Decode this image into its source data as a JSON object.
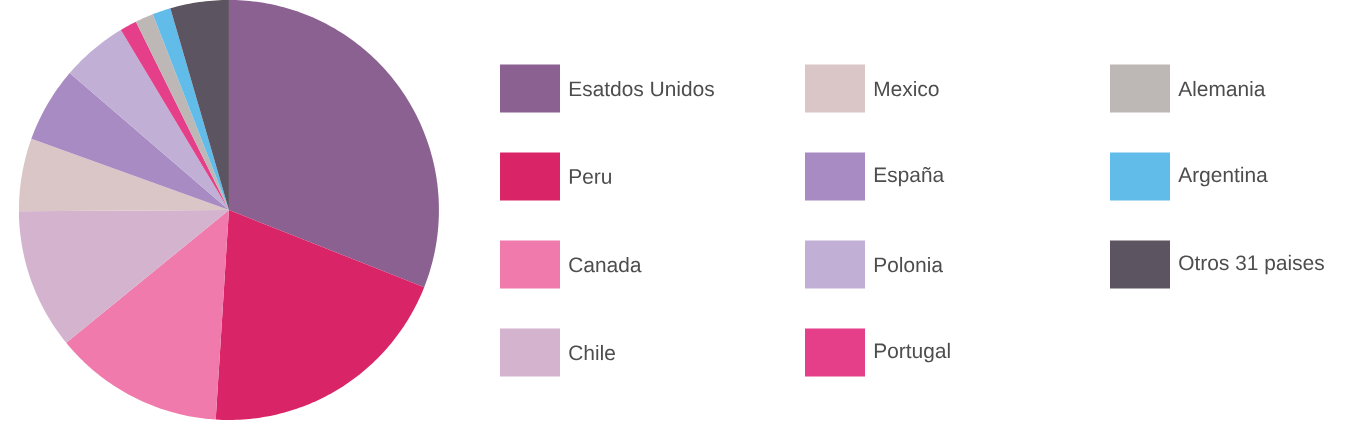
{
  "chart_data": {
    "type": "pie",
    "categories": [
      "Esatdos Unidos",
      "Peru",
      "Canada",
      "Chile",
      "Mexico",
      "España",
      "Polonia",
      "Portugal",
      "Alemania",
      "Argentina",
      "Otros 31 paises"
    ],
    "values": [
      31,
      20,
      13.1,
      10.8,
      5.6,
      5.8,
      5.1,
      1.3,
      1.4,
      1.4,
      4.5
    ],
    "colors": [
      "#8b6191",
      "#d92567",
      "#ef7aab",
      "#d4b3cf",
      "#dbc6c7",
      "#a78bc2",
      "#c1afd5",
      "#e53f8a",
      "#bdb8b6",
      "#62bce9",
      "#5c5460"
    ],
    "legend": "right"
  }
}
